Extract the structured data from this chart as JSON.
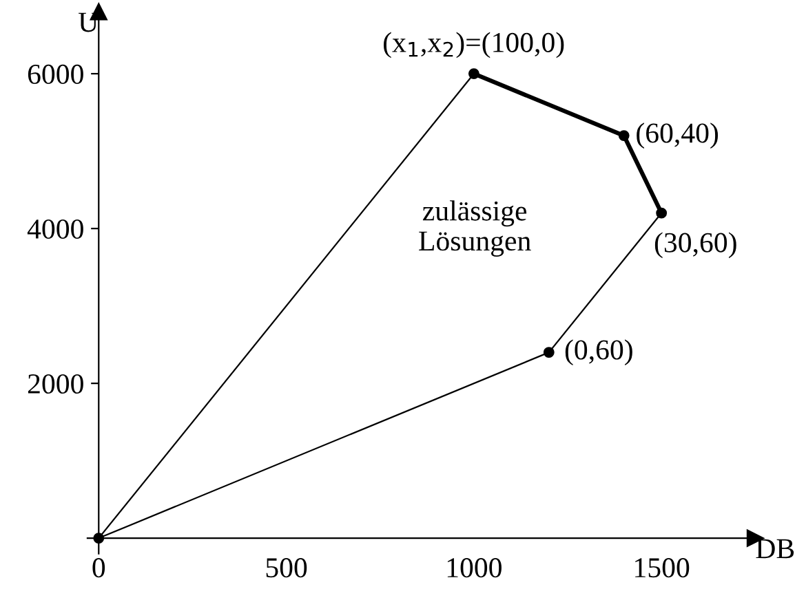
{
  "chart_data": {
    "type": "line",
    "xlabel": "DB",
    "ylabel": "U",
    "series": [
      {
        "color": "#000000",
        "x": [
          0,
          1000
        ],
        "values": [
          0,
          6000
        ],
        "marker": "none",
        "line_style": "solid"
      },
      {
        "color": "#000000",
        "x": [
          1000,
          1400,
          1500
        ],
        "values": [
          6000,
          5200,
          4200
        ],
        "marker": "none",
        "line_style": "solid"
      },
      {
        "color": "#000000",
        "x": [
          0,
          1200,
          1500
        ],
        "values": [
          0,
          2400,
          4200
        ],
        "marker": "none",
        "line_style": "solid"
      },
      {
        "type": "scatter",
        "color": "#000000",
        "x": [
          0,
          1000,
          1400,
          1500,
          1200
        ],
        "values": [
          0,
          6000,
          5200,
          4200,
          2400
        ],
        "marker": "circle"
      }
    ],
    "xlim": [
      -30,
      1750
    ],
    "ylim": [
      -200,
      6800
    ],
    "xticks": [
      0,
      500,
      1000,
      1500
    ],
    "yticks": [
      2000,
      4000,
      6000
    ],
    "grid": false,
    "legend": false,
    "annotations": [
      {
        "text": "(x$_{1}$,x$_{2}$)=(100,0)",
        "x": 1000,
        "y": 6000
      },
      {
        "text": "(60,40)",
        "x": 1400,
        "y": 5200
      },
      {
        "text": "(30,60)",
        "x": 1500,
        "y": 4200
      },
      {
        "text": "(0,60)",
        "x": 1200,
        "y": 2400
      },
      "zulässige\nLösungen"
    ]
  }
}
